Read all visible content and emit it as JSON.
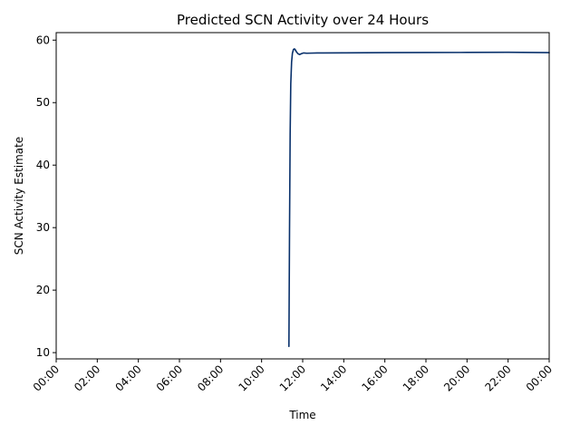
{
  "chart_data": {
    "type": "line",
    "title": "Predicted SCN Activity over 24 Hours",
    "xlabel": "Time",
    "ylabel": "SCN Activity Estimate",
    "x_ticks": [
      "00:00",
      "02:00",
      "04:00",
      "06:00",
      "08:00",
      "10:00",
      "12:00",
      "14:00",
      "16:00",
      "18:00",
      "20:00",
      "22:00",
      "00:00"
    ],
    "y_ticks": [
      "10",
      "20",
      "30",
      "40",
      "50",
      "60"
    ],
    "xlim_hours": [
      0,
      24
    ],
    "ylim": [
      9,
      61.2
    ],
    "grid": false,
    "legend": "none",
    "series": [
      {
        "color": "#08306b",
        "x_hours": [
          11.33,
          11.36,
          11.39,
          11.42,
          11.46,
          11.5,
          11.55,
          11.6,
          11.65,
          11.7,
          11.78,
          11.85,
          11.95,
          12.05,
          12.2,
          12.4,
          12.7,
          13.0,
          14.0,
          16.0,
          18.0,
          20.0,
          22.0,
          24.0
        ],
        "y": [
          11.0,
          30.0,
          45.0,
          53.0,
          56.5,
          57.9,
          58.5,
          58.6,
          58.4,
          58.1,
          57.8,
          57.7,
          57.85,
          57.95,
          57.9,
          57.92,
          57.95,
          57.95,
          57.97,
          58.0,
          58.02,
          58.03,
          58.05,
          58.0
        ]
      }
    ]
  }
}
